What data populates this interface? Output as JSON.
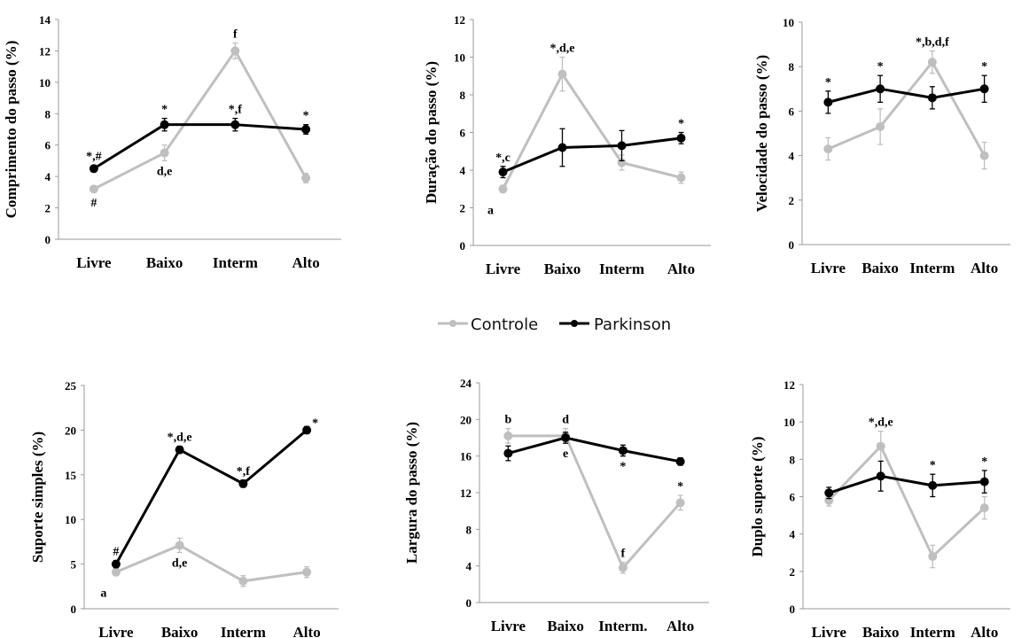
{
  "legend": {
    "items": [
      {
        "label": "Controle",
        "color": "#bfbfbf"
      },
      {
        "label": "Parkinson",
        "color": "#000000"
      }
    ]
  },
  "chart_data": [
    {
      "type": "line",
      "ylabel": "Comprimento do passo (%)",
      "categories": [
        "Livre",
        "Baixo",
        "Interm",
        "Alto"
      ],
      "ylim": [
        0,
        14
      ],
      "yticks": [
        0,
        2,
        4,
        6,
        8,
        10,
        12,
        14
      ],
      "series": [
        {
          "name": "Controle",
          "values": [
            3.2,
            5.5,
            12.0,
            3.9
          ],
          "errors": [
            0.2,
            0.5,
            0.5,
            0.3
          ]
        },
        {
          "name": "Parkinson",
          "values": [
            4.5,
            7.3,
            7.3,
            7.0
          ],
          "errors": [
            0.2,
            0.4,
            0.4,
            0.3
          ]
        }
      ],
      "annotations": [
        {
          "text": "*,#",
          "series": 1,
          "index": 0,
          "pos": "above"
        },
        {
          "text": "#",
          "series": 0,
          "index": 0,
          "pos": "below"
        },
        {
          "text": "*",
          "series": 1,
          "index": 1,
          "pos": "above"
        },
        {
          "text": "d,e",
          "series": 0,
          "index": 1,
          "pos": "below"
        },
        {
          "text": "f",
          "series": 0,
          "index": 2,
          "pos": "above"
        },
        {
          "text": "*,f",
          "series": 1,
          "index": 2,
          "pos": "above"
        },
        {
          "text": "*",
          "series": 1,
          "index": 3,
          "pos": "above"
        }
      ]
    },
    {
      "type": "line",
      "ylabel": "Duração do passo (%)",
      "categories": [
        "Livre",
        "Baixo",
        "Interm",
        "Alto"
      ],
      "ylim": [
        0,
        12
      ],
      "yticks": [
        0,
        2,
        4,
        6,
        8,
        10,
        12
      ],
      "series": [
        {
          "name": "Controle",
          "values": [
            3.0,
            9.1,
            4.4,
            3.6
          ],
          "errors": [
            0.2,
            0.9,
            0.4,
            0.3
          ]
        },
        {
          "name": "Parkinson",
          "values": [
            3.9,
            5.2,
            5.3,
            5.7
          ],
          "errors": [
            0.3,
            1.0,
            0.8,
            0.3
          ]
        }
      ],
      "annotations": [
        {
          "text": "*,c",
          "series": 1,
          "index": 0,
          "pos": "above"
        },
        {
          "text": "a",
          "series": 0,
          "index": 0,
          "pos": "belowleft"
        },
        {
          "text": "*,d,e",
          "series": 0,
          "index": 1,
          "pos": "above"
        },
        {
          "text": "*",
          "series": 1,
          "index": 3,
          "pos": "above"
        }
      ]
    },
    {
      "type": "line",
      "ylabel": "Velocidade do passo (%)",
      "categories": [
        "Livre",
        "Baixo",
        "Interm",
        "Alto"
      ],
      "ylim": [
        0,
        10
      ],
      "yticks": [
        0,
        2,
        4,
        6,
        8,
        10
      ],
      "series": [
        {
          "name": "Controle",
          "values": [
            4.3,
            5.3,
            8.2,
            4.0
          ],
          "errors": [
            0.5,
            0.8,
            0.5,
            0.6
          ]
        },
        {
          "name": "Parkinson",
          "values": [
            6.4,
            7.0,
            6.6,
            7.0
          ],
          "errors": [
            0.5,
            0.6,
            0.5,
            0.6
          ]
        }
      ],
      "annotations": [
        {
          "text": "*",
          "series": 1,
          "index": 0,
          "pos": "above"
        },
        {
          "text": "*",
          "series": 1,
          "index": 1,
          "pos": "above"
        },
        {
          "text": "*,b,d,f",
          "series": 0,
          "index": 2,
          "pos": "above"
        },
        {
          "text": "*",
          "series": 1,
          "index": 3,
          "pos": "above"
        }
      ]
    },
    {
      "type": "line",
      "ylabel": "Suporte simples (%)",
      "categories": [
        "Livre",
        "Baixo",
        "Interm",
        "Alto"
      ],
      "ylim": [
        0,
        25
      ],
      "yticks": [
        0,
        5,
        10,
        15,
        20,
        25
      ],
      "series": [
        {
          "name": "Controle",
          "values": [
            4.1,
            7.1,
            3.1,
            4.1
          ],
          "errors": [
            0.4,
            0.8,
            0.6,
            0.6
          ]
        },
        {
          "name": "Parkinson",
          "values": [
            5.0,
            17.8,
            14.0,
            20.0
          ],
          "errors": [
            0.4,
            0.4,
            0.4,
            0.4
          ]
        }
      ],
      "annotations": [
        {
          "text": "#",
          "series": 1,
          "index": 0,
          "pos": "above"
        },
        {
          "text": "a",
          "series": 0,
          "index": 0,
          "pos": "belowleft"
        },
        {
          "text": "*,d,e",
          "series": 1,
          "index": 1,
          "pos": "above"
        },
        {
          "text": "d,e",
          "series": 0,
          "index": 1,
          "pos": "below"
        },
        {
          "text": "*,f",
          "series": 1,
          "index": 2,
          "pos": "above"
        },
        {
          "text": "*",
          "series": 1,
          "index": 3,
          "pos": "aboveright"
        }
      ]
    },
    {
      "type": "line",
      "ylabel": "Largura do passo (%)",
      "categories": [
        "Livre",
        "Baixo",
        "Interm.",
        "Alto"
      ],
      "ylim": [
        0,
        24
      ],
      "yticks": [
        0,
        4,
        8,
        12,
        16,
        20,
        24
      ],
      "series": [
        {
          "name": "Controle",
          "values": [
            18.2,
            18.2,
            3.8,
            10.9
          ],
          "errors": [
            0.8,
            0.8,
            0.6,
            0.8
          ]
        },
        {
          "name": "Parkinson",
          "values": [
            16.3,
            18.0,
            16.6,
            15.4
          ],
          "errors": [
            0.8,
            0.6,
            0.6,
            0.4
          ]
        }
      ],
      "annotations": [
        {
          "text": "b",
          "series": 0,
          "index": 0,
          "pos": "above"
        },
        {
          "text": "d",
          "series": 0,
          "index": 1,
          "pos": "above"
        },
        {
          "text": "e",
          "series": 1,
          "index": 1,
          "pos": "below"
        },
        {
          "text": "*",
          "series": 1,
          "index": 2,
          "pos": "below"
        },
        {
          "text": "f",
          "series": 0,
          "index": 2,
          "pos": "above"
        },
        {
          "text": "*",
          "series": 0,
          "index": 3,
          "pos": "above"
        }
      ]
    },
    {
      "type": "line",
      "ylabel": "Duplo suporte (%)",
      "categories": [
        "Livre",
        "Baixo",
        "Interm",
        "Alto"
      ],
      "ylim": [
        0,
        12
      ],
      "yticks": [
        0,
        2,
        4,
        6,
        8,
        10,
        12
      ],
      "series": [
        {
          "name": "Controle",
          "values": [
            5.8,
            8.7,
            2.8,
            5.4
          ],
          "errors": [
            0.3,
            0.8,
            0.6,
            0.6
          ]
        },
        {
          "name": "Parkinson",
          "values": [
            6.2,
            7.1,
            6.6,
            6.8
          ],
          "errors": [
            0.3,
            0.8,
            0.6,
            0.6
          ]
        }
      ],
      "annotations": [
        {
          "text": "*,d,e",
          "series": 0,
          "index": 1,
          "pos": "above"
        },
        {
          "text": "*",
          "series": 1,
          "index": 2,
          "pos": "above"
        },
        {
          "text": "*",
          "series": 1,
          "index": 3,
          "pos": "above"
        }
      ]
    }
  ]
}
